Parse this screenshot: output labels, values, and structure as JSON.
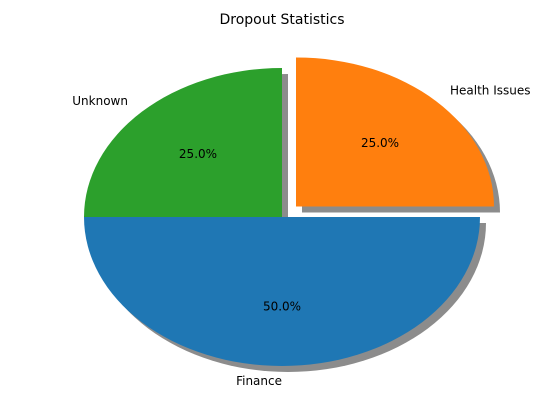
{
  "chart_data": {
    "type": "pie",
    "title": "Dropout Statistics",
    "slices": [
      {
        "label": "Unknown",
        "value": 25.0,
        "percent_label": "25.0%",
        "color": "#2ca02c",
        "explode": 0
      },
      {
        "label": "Finance",
        "value": 50.0,
        "percent_label": "50.0%",
        "color": "#1f77b4",
        "explode": 0
      },
      {
        "label": "Health Issues",
        "value": 25.0,
        "percent_label": "25.0%",
        "color": "#ff7f0e",
        "explode": 0.1
      }
    ],
    "shadow": true,
    "start_angle_deg": 90,
    "legend": "none"
  }
}
